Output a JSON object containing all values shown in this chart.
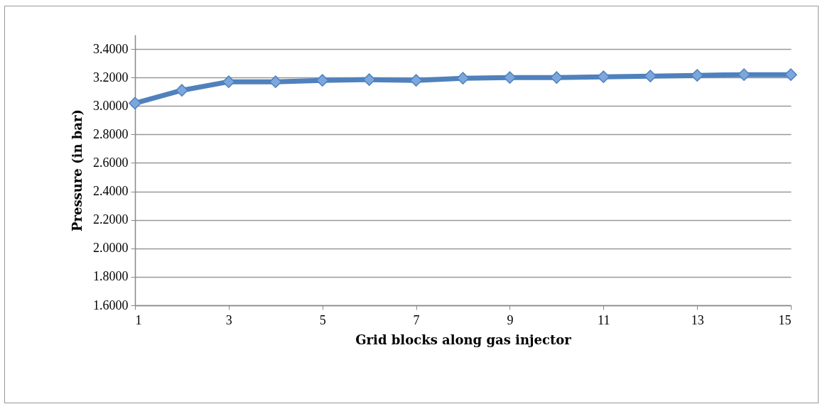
{
  "chart_data": {
    "type": "line",
    "xlabel": "Grid blocks along gas injector",
    "ylabel": "Pressure (in bar)",
    "x": [
      1,
      2,
      3,
      4,
      5,
      6,
      7,
      8,
      9,
      10,
      11,
      12,
      13,
      14,
      15
    ],
    "series": [
      {
        "color": "#4f81bd",
        "values": [
          3.02,
          3.11,
          3.17,
          3.17,
          3.18,
          3.185,
          3.18,
          3.195,
          3.2,
          3.2,
          3.205,
          3.21,
          3.215,
          3.22,
          3.22
        ]
      }
    ],
    "xlim": [
      1,
      15
    ],
    "xticks": [
      1,
      3,
      5,
      7,
      9,
      11,
      13,
      15
    ],
    "ylim": [
      1.6,
      3.5
    ],
    "yticks": [
      {
        "value": 1.6,
        "label": "1.6000"
      },
      {
        "value": 1.8,
        "label": "1.8000"
      },
      {
        "value": 2.0,
        "label": "2.0000"
      },
      {
        "value": 2.2,
        "label": "2.2000"
      },
      {
        "value": 2.4,
        "label": "2.4000"
      },
      {
        "value": 2.6,
        "label": "2.6000"
      },
      {
        "value": 2.8,
        "label": "2.8000"
      },
      {
        "value": 3.0,
        "label": "3.0000"
      },
      {
        "value": 3.2,
        "label": "3.2000"
      },
      {
        "value": 3.4,
        "label": "3.4000"
      }
    ],
    "grid": "y",
    "marker": "diamond",
    "line_style": "solid"
  }
}
